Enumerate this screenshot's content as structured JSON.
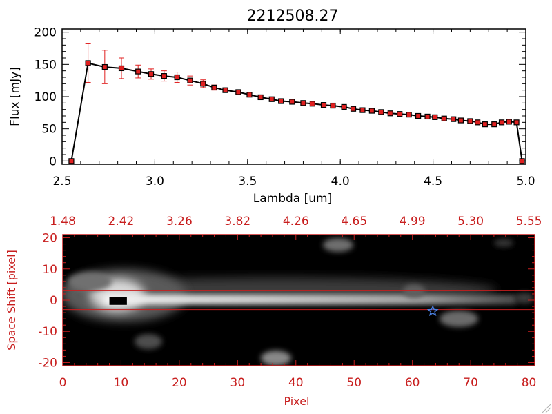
{
  "colors": {
    "axis_black": "#000000",
    "accent_red": "#c81e1e",
    "marker_red": "#e02020",
    "star_blue": "#4a7fe0"
  },
  "chart_data": [
    {
      "type": "line",
      "title": "2212508.27",
      "xlabel": "Lambda [um]",
      "ylabel": "Flux [mJy]",
      "xlim": [
        2.5,
        5.0
      ],
      "ylim": [
        -5,
        205
      ],
      "xticks": [
        2.5,
        3.0,
        3.5,
        4.0,
        4.5,
        5.0
      ],
      "xtick_labels": [
        "2.5",
        "3.0",
        "3.5",
        "4.0",
        "4.5",
        "5.0"
      ],
      "yticks": [
        0,
        50,
        100,
        150,
        200
      ],
      "ytick_labels": [
        "0",
        "50",
        "100",
        "150",
        "200"
      ],
      "grid": false,
      "series": [
        {
          "x": [
            2.55,
            2.64,
            2.73,
            2.82,
            2.91,
            2.98,
            3.05,
            3.12,
            3.19,
            3.26,
            3.32,
            3.38,
            3.45,
            3.51,
            3.57,
            3.63,
            3.68,
            3.74,
            3.8,
            3.85,
            3.91,
            3.96,
            4.02,
            4.07,
            4.12,
            4.17,
            4.22,
            4.27,
            4.32,
            4.37,
            4.42,
            4.47,
            4.51,
            4.56,
            4.61,
            4.65,
            4.7,
            4.74,
            4.78,
            4.83,
            4.87,
            4.91,
            4.95,
            4.98
          ],
          "y": [
            0,
            152,
            146,
            144,
            139,
            135,
            132,
            130,
            125,
            120,
            114,
            110,
            107,
            103,
            99,
            96,
            93,
            92,
            90,
            89,
            87,
            86,
            84,
            81,
            79,
            78,
            76,
            74,
            73,
            72,
            70,
            69,
            68,
            66,
            65,
            63,
            62,
            60,
            57,
            57,
            60,
            61,
            60,
            0
          ],
          "err": [
            0,
            30,
            26,
            16,
            10,
            8,
            8,
            8,
            7,
            6,
            4,
            3,
            2,
            2,
            2,
            1,
            1,
            1,
            1,
            1,
            1,
            1,
            1,
            1,
            1,
            1,
            1,
            1,
            1,
            1,
            1,
            1,
            1,
            1,
            1,
            1,
            1,
            1,
            1,
            1,
            2,
            3,
            3,
            0
          ]
        }
      ]
    },
    {
      "type": "heatmap",
      "xlabel": "Pixel",
      "ylabel": "Space Shift [pixel]",
      "xlim": [
        0,
        81
      ],
      "ylim": [
        -21,
        21
      ],
      "xticks": [
        0,
        10,
        20,
        30,
        40,
        50,
        60,
        70,
        80
      ],
      "xtick_labels": [
        "0",
        "10",
        "20",
        "30",
        "40",
        "50",
        "60",
        "70",
        "80"
      ],
      "yticks": [
        -20,
        -10,
        0,
        10,
        20
      ],
      "ytick_labels": [
        "-20",
        "-10",
        "0",
        "10",
        "20"
      ],
      "top_tick_labels": [
        "1.48",
        "2.42",
        "3.26",
        "3.82",
        "4.26",
        "4.65",
        "4.99",
        "5.30",
        "5.55"
      ],
      "extraction_window": [
        -3,
        3
      ],
      "trace_center": 0,
      "source_marker": {
        "x": 63.5,
        "y": -3.5,
        "symbol": "star"
      },
      "saturated_block": {
        "x": [
          8,
          11
        ],
        "y": [
          -1.5,
          1
        ]
      }
    }
  ]
}
